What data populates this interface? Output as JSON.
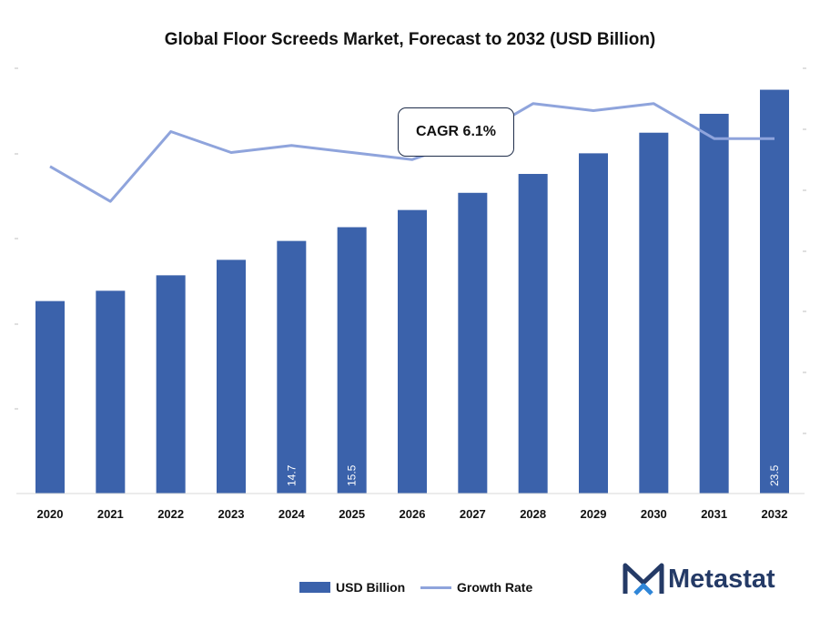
{
  "chart_data": {
    "type": "bar",
    "title": "Global Floor Screeds Market, Forecast to 2032 (USD Billion)",
    "categories": [
      "2020",
      "2021",
      "2022",
      "2023",
      "2024",
      "2025",
      "2026",
      "2027",
      "2028",
      "2029",
      "2030",
      "2031",
      "2032"
    ],
    "series": [
      {
        "name": "USD Billion",
        "type": "bar",
        "color": "#3b62ab",
        "values": [
          11.2,
          11.8,
          12.7,
          13.6,
          14.7,
          15.5,
          16.5,
          17.5,
          18.6,
          19.8,
          21.0,
          22.1,
          23.5
        ],
        "data_labels": [
          "",
          "",
          "",
          "",
          "14.7",
          "15.5",
          "",
          "",
          "",
          "",
          "",
          "",
          "23.5"
        ]
      },
      {
        "name": "Growth Rate",
        "type": "line",
        "color": "#8fa4dc",
        "values": [
          5.4,
          4.9,
          5.9,
          5.6,
          5.7,
          5.6,
          5.5,
          5.8,
          6.3,
          6.2,
          6.3,
          5.8,
          5.8
        ]
      }
    ],
    "annotation": "CAGR 6.1%",
    "legend_position": "bottom",
    "grid": false
  },
  "brand": {
    "name": "Metastat"
  }
}
